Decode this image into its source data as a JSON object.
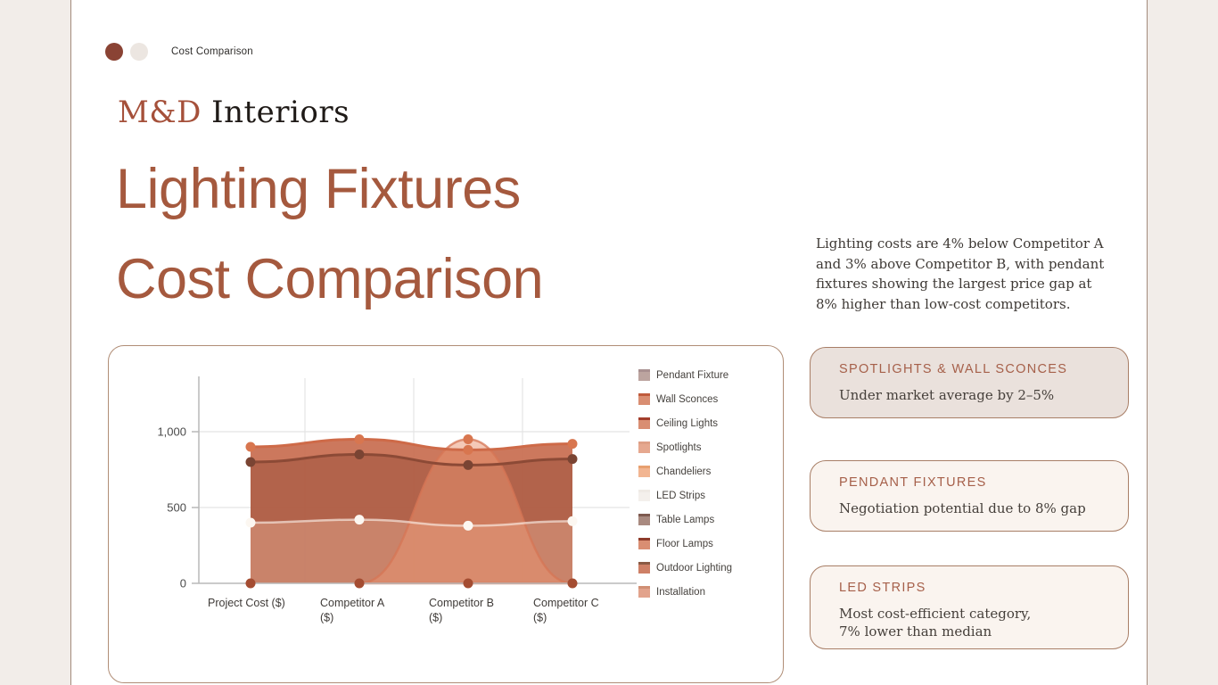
{
  "page": {
    "slide_label": "Cost Comparison",
    "brand_accent": "M&D",
    "brand_rest": " Interiors",
    "title_line1": "Lighting Fixtures",
    "title_line2": "Cost Comparison",
    "summary": "Lighting costs are 4% below Competitor A and 3% above Competitor B, with pendant fixtures showing the largest price gap at 8% higher than low-cost competitors."
  },
  "colors": {
    "accent_terracotta": "#A5593E",
    "brand_dark": "#1F1A17",
    "side_bg": "#F2EDE9",
    "side_line": "#A38B7D",
    "card_border": "#A87E66",
    "chart_card_border": "#B08D76",
    "active_dot": "#8A4334",
    "inactive_dot": "#ECE6E1"
  },
  "legend": [
    {
      "label": "Pendant Fixture",
      "fill": "#BCA49F",
      "top": "#A99090"
    },
    {
      "label": "Wall Sconces",
      "fill": "#D98E72",
      "top": "#C05B3C"
    },
    {
      "label": "Ceiling Lights",
      "fill": "#D98E72",
      "top": "#A33E2C"
    },
    {
      "label": "Spotlights",
      "fill": "#E6A88F",
      "top": "#DE9F85"
    },
    {
      "label": "Chandeliers",
      "fill": "#F2B591",
      "top": "#E8A06F"
    },
    {
      "label": "LED Strips",
      "fill": "#F4F0EC",
      "top": "#EFEAE5"
    },
    {
      "label": "Table Lamps",
      "fill": "#A98A80",
      "top": "#7E5A50"
    },
    {
      "label": "Floor Lamps",
      "fill": "#D98E72",
      "top": "#8E3B2A"
    },
    {
      "label": "Outdoor Lighting",
      "fill": "#CE8066",
      "top": "#8A5A44"
    },
    {
      "label": "Installation",
      "fill": "#E2A38C",
      "top": "#D08F74"
    }
  ],
  "chart_data": {
    "type": "area",
    "title": "",
    "xlabel": "",
    "ylabel": "",
    "categories": [
      "Project Cost ($)",
      "Competitor A ($)",
      "Competitor B ($)",
      "Competitor C ($)"
    ],
    "x_tick_lines": [
      [
        "Project Cost ($)"
      ],
      [
        "Competitor A",
        "($)"
      ],
      [
        "Competitor B",
        "($)"
      ],
      [
        "Competitor C",
        "($)"
      ]
    ],
    "ylim": [
      0,
      1280
    ],
    "yticks": [
      0,
      500,
      1000
    ],
    "ytick_labels": [
      "0",
      "500",
      "1,000"
    ],
    "grid": true,
    "legend_position": "right",
    "series": [
      {
        "name": "Pendant Fixture",
        "values": [
          0,
          0,
          0,
          0
        ]
      },
      {
        "name": "Wall Sconces",
        "values": [
          900,
          950,
          880,
          920
        ]
      },
      {
        "name": "Ceiling Lights",
        "values": [
          0,
          0,
          0,
          0
        ]
      },
      {
        "name": "Spotlights",
        "values": [
          0,
          0,
          0,
          0
        ]
      },
      {
        "name": "Chandeliers",
        "values": [
          0,
          0,
          950,
          0
        ]
      },
      {
        "name": "LED Strips",
        "values": [
          400,
          420,
          380,
          410
        ]
      },
      {
        "name": "Table Lamps",
        "values": [
          800,
          850,
          780,
          820
        ]
      },
      {
        "name": "Floor Lamps",
        "values": [
          0,
          0,
          0,
          0
        ]
      },
      {
        "name": "Outdoor Lighting",
        "values": [
          0,
          0,
          0,
          0
        ]
      },
      {
        "name": "Installation",
        "values": [
          0,
          0,
          0,
          0
        ]
      }
    ],
    "render_colors": {
      "main_area_fill": "#C86C4F",
      "dark_overlay": "rgba(125,55,38,0.32)",
      "light_overlay": "rgba(255,205,180,0.30)",
      "hump_fill": "rgba(233,148,112,0.50)",
      "hump_stroke": "rgba(213,118,86,0.75)",
      "top_line": "#CE6A48",
      "dark_line": "#8C4A36",
      "pale_line": "rgba(255,248,242,0.60)",
      "top_dot": "#D8764F",
      "dark_dot": "#7A4433",
      "pale_dot": "#FCF7F1",
      "zero_dot": "#A44C31",
      "axis": "#B9B9B9",
      "gridline": "#E4E4E4",
      "tick_text": "#4A4A4A",
      "xlabel_text": "#3F3B38"
    }
  },
  "cards": [
    {
      "title": "SPOTLIGHTS & WALL SCONCES",
      "body1": "Under market average by 2–5%",
      "body2": ""
    },
    {
      "title": "PENDANT FIXTURES",
      "body1": "Negotiation potential due to 8% gap",
      "body2": ""
    },
    {
      "title": "LED STRIPS",
      "body1": "Most cost-efficient category,",
      "body2": "7% lower than median"
    }
  ]
}
